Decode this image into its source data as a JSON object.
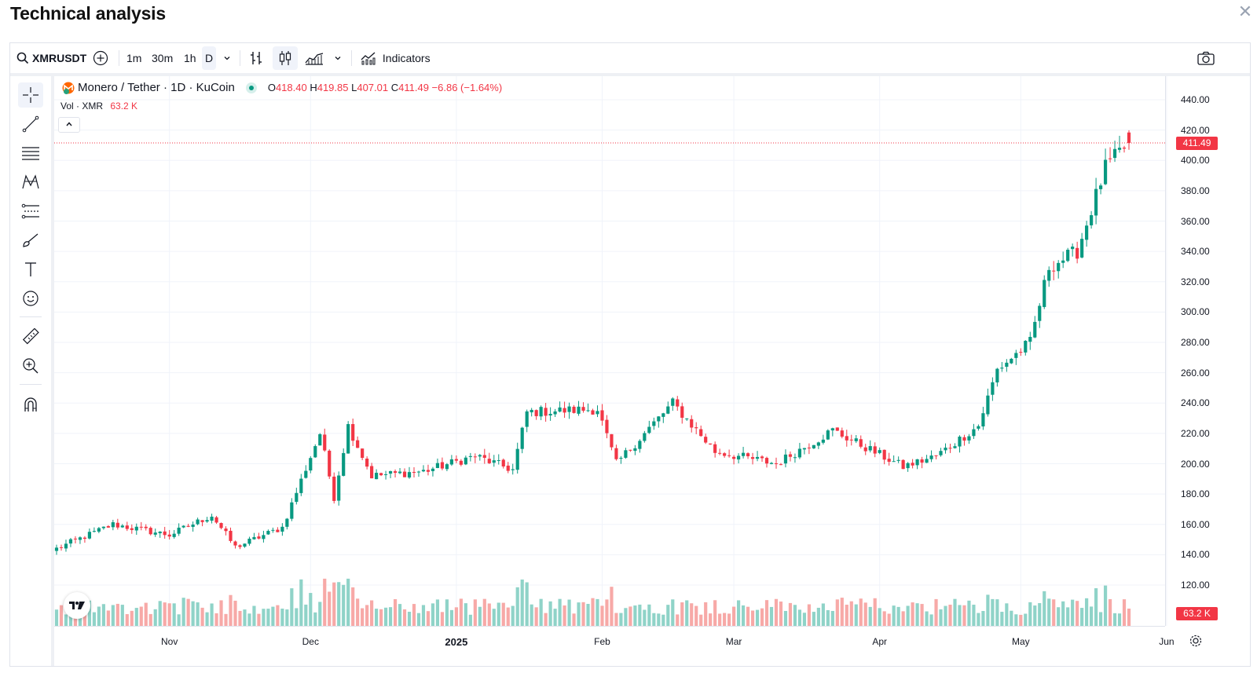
{
  "header": {
    "title": "Technical analysis",
    "close_icon": "close-icon"
  },
  "toolbar": {
    "symbol": "XMRUSDT",
    "timeframes": [
      "1m",
      "30m",
      "1h",
      "D"
    ],
    "active_timeframe": "D",
    "indicators_label": "Indicators"
  },
  "legend": {
    "title": "Monero / Tether · 1D · KuCoin",
    "o_label": "O",
    "o": "418.40",
    "h_label": "H",
    "h": "419.85",
    "l_label": "L",
    "l": "407.01",
    "c_label": "C",
    "c": "411.49",
    "change": "−6.86 (−1.64%)",
    "vol_label": "Vol · XMR",
    "vol_value": "63.2 K"
  },
  "price_scale": {
    "ticks": [
      "440.00",
      "420.00",
      "400.00",
      "380.00",
      "360.00",
      "340.00",
      "320.00",
      "300.00",
      "280.00",
      "260.00",
      "240.00",
      "220.00",
      "200.00",
      "180.00",
      "160.00",
      "140.00",
      "120.00"
    ],
    "last_price_tag": "411.49",
    "volume_tag": "63.2 K"
  },
  "time_scale": {
    "labels": [
      {
        "text": "Nov",
        "bold": false
      },
      {
        "text": "Dec",
        "bold": false
      },
      {
        "text": "2025",
        "bold": true
      },
      {
        "text": "Feb",
        "bold": false
      },
      {
        "text": "Mar",
        "bold": false
      },
      {
        "text": "Apr",
        "bold": false
      },
      {
        "text": "May",
        "bold": false
      },
      {
        "text": "Jun",
        "bold": false
      }
    ]
  },
  "colors": {
    "up": "#089981",
    "down": "#f23645",
    "vol_up": "#8fd3c8",
    "vol_down": "#f7a9a7"
  },
  "chart_data": {
    "type": "candlestick",
    "symbol": "Monero / Tether · 1D · KuCoin",
    "x_range": [
      "2024-10-08",
      "2025-05-24"
    ],
    "y_range": [
      120,
      440
    ],
    "last": 411.49,
    "close_path": [
      {
        "date": "2024-10-08",
        "close": 144
      },
      {
        "date": "2024-10-20",
        "close": 160
      },
      {
        "date": "2024-11-01",
        "close": 153
      },
      {
        "date": "2024-11-10",
        "close": 166
      },
      {
        "date": "2024-11-15",
        "close": 145
      },
      {
        "date": "2024-11-25",
        "close": 158
      },
      {
        "date": "2024-12-03",
        "close": 220
      },
      {
        "date": "2024-12-06",
        "close": 178
      },
      {
        "date": "2024-12-09",
        "close": 225
      },
      {
        "date": "2024-12-14",
        "close": 192
      },
      {
        "date": "2024-12-25",
        "close": 195
      },
      {
        "date": "2025-01-05",
        "close": 205
      },
      {
        "date": "2025-01-13",
        "close": 196
      },
      {
        "date": "2025-01-16",
        "close": 234
      },
      {
        "date": "2025-01-31",
        "close": 236
      },
      {
        "date": "2025-02-04",
        "close": 200
      },
      {
        "date": "2025-02-16",
        "close": 240
      },
      {
        "date": "2025-02-25",
        "close": 208
      },
      {
        "date": "2025-03-10",
        "close": 200
      },
      {
        "date": "2025-03-22",
        "close": 222
      },
      {
        "date": "2025-04-06",
        "close": 198
      },
      {
        "date": "2025-04-13",
        "close": 205
      },
      {
        "date": "2025-04-22",
        "close": 225
      },
      {
        "date": "2025-04-26",
        "close": 262
      },
      {
        "date": "2025-05-03",
        "close": 280
      },
      {
        "date": "2025-05-07",
        "close": 330
      },
      {
        "date": "2025-05-13",
        "close": 340
      },
      {
        "date": "2025-05-19",
        "close": 395
      },
      {
        "date": "2025-05-24",
        "close": 411.49
      }
    ]
  }
}
